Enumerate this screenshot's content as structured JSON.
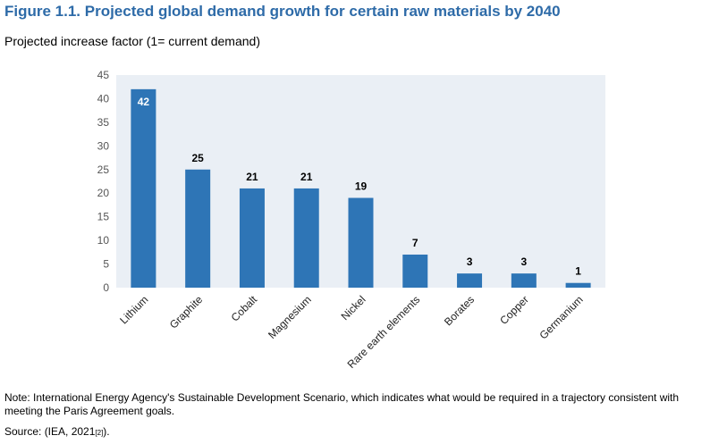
{
  "figure": {
    "title": "Figure 1.1. Projected global demand growth for certain raw materials by 2040",
    "subtitle": "Projected increase factor (1= current demand)"
  },
  "chart_data": {
    "type": "bar",
    "categories": [
      "Lithium",
      "Graphite",
      "Cobalt",
      "Magnesium",
      "Nickel",
      "Rare earth elements",
      "Borates",
      "Copper",
      "Germanium"
    ],
    "values": [
      42,
      25,
      21,
      21,
      19,
      7,
      3,
      3,
      1
    ],
    "data_labels": [
      "42",
      "25",
      "21",
      "21",
      "19",
      "7",
      "3",
      "3",
      "1"
    ],
    "ylim": [
      0,
      45
    ],
    "yticks": [
      0,
      5,
      10,
      15,
      20,
      25,
      30,
      35,
      40,
      45
    ],
    "ytick_labels": [
      "0",
      "5",
      "10",
      "15",
      "20",
      "25",
      "30",
      "35",
      "40",
      "45"
    ],
    "grid": false,
    "bar_color": "#2e75b6",
    "plot_background": "#eaeff5"
  },
  "footer": {
    "note": "Note: International Energy Agency's Sustainable Development Scenario, which indicates what would be required in a trajectory consistent with meeting the Paris Agreement goals.",
    "source_prefix": "Source: (IEA, 2021",
    "source_ref": "[2]",
    "source_suffix": ")."
  }
}
